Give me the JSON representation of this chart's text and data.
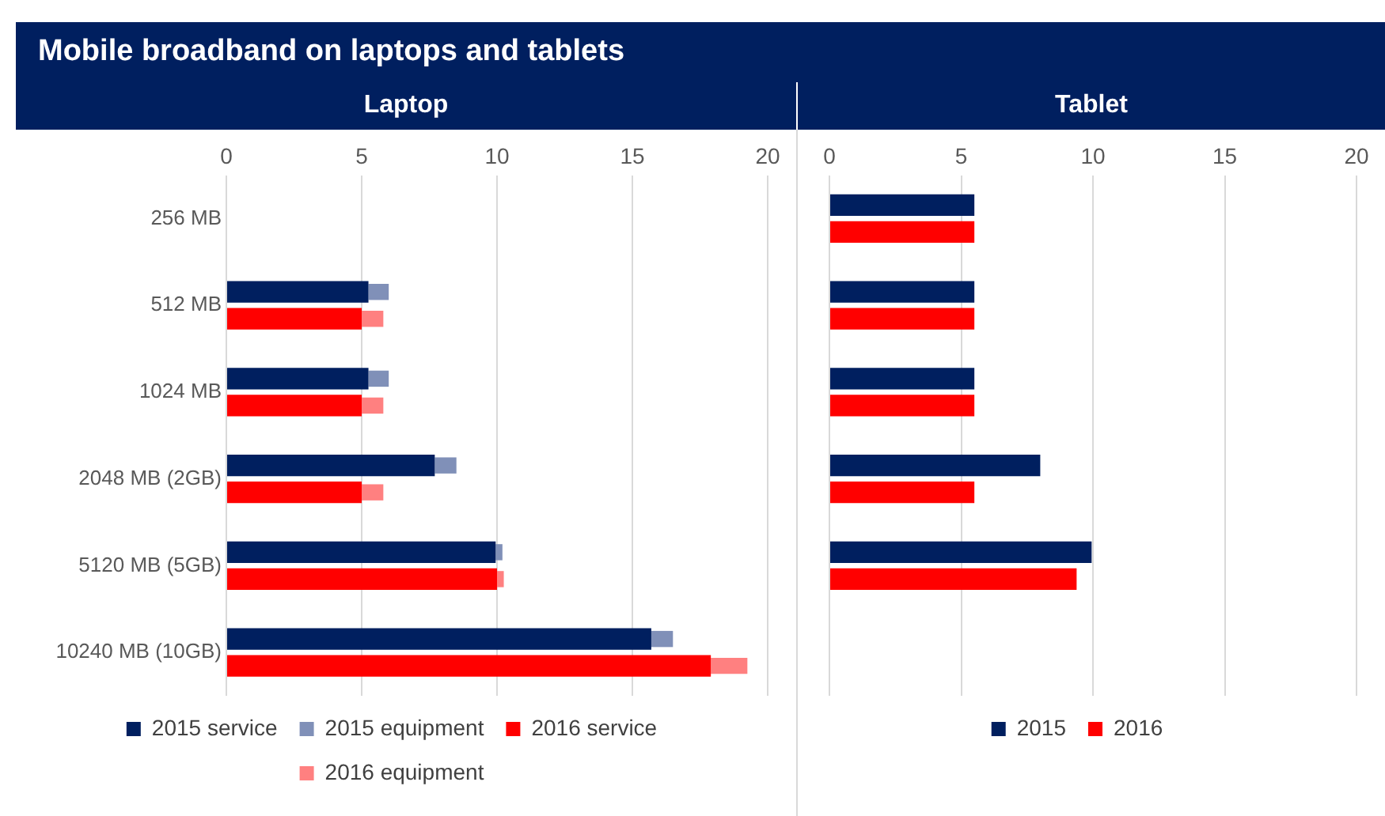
{
  "chart_data": [
    {
      "type": "bar",
      "title": "Mobile broadband on laptops and tablets",
      "subtitle": "Laptop",
      "orientation": "horizontal",
      "categories": [
        "256 MB",
        "512 MB",
        "1024 MB",
        "2048 MB (2GB)",
        "5120 MB (5GB)",
        "10240 MB (10GB)"
      ],
      "series": [
        {
          "name": "2015 service",
          "color": "#001f5f",
          "values": [
            null,
            5.25,
            5.25,
            7.7,
            9.95,
            15.7
          ]
        },
        {
          "name": "2015 equipment",
          "color": "#8090b8",
          "values": [
            null,
            0.75,
            0.75,
            0.8,
            0.25,
            0.8
          ],
          "base": [
            null,
            5.25,
            5.25,
            7.7,
            9.95,
            15.7
          ]
        },
        {
          "name": "2016 service",
          "color": "#ff0000",
          "values": [
            null,
            5.0,
            5.0,
            5.0,
            10.0,
            17.9
          ]
        },
        {
          "name": "2016 equipment",
          "color": "#ff8080",
          "values": [
            null,
            0.8,
            0.8,
            0.8,
            0.25,
            1.35
          ],
          "base": [
            null,
            5.0,
            5.0,
            5.0,
            10.0,
            17.9
          ]
        }
      ],
      "xlim": [
        0,
        20
      ],
      "xticks": [
        0,
        5,
        10,
        15,
        20
      ],
      "grid": "x",
      "legend": "bottom"
    },
    {
      "type": "bar",
      "subtitle": "Tablet",
      "orientation": "horizontal",
      "categories": [
        null,
        null,
        null,
        null,
        null,
        null
      ],
      "series": [
        {
          "name": "2015",
          "color": "#001f5f",
          "values": [
            5.5,
            5.5,
            5.5,
            8.0,
            9.95,
            null
          ]
        },
        {
          "name": "2016",
          "color": "#ff0000",
          "values": [
            5.5,
            5.5,
            5.5,
            5.5,
            9.38,
            null
          ]
        }
      ],
      "xlim": [
        0,
        20
      ],
      "xticks": [
        0,
        5,
        10,
        15,
        20
      ],
      "grid": "x",
      "legend": "bottom",
      "tick_labels": "x"
    }
  ]
}
